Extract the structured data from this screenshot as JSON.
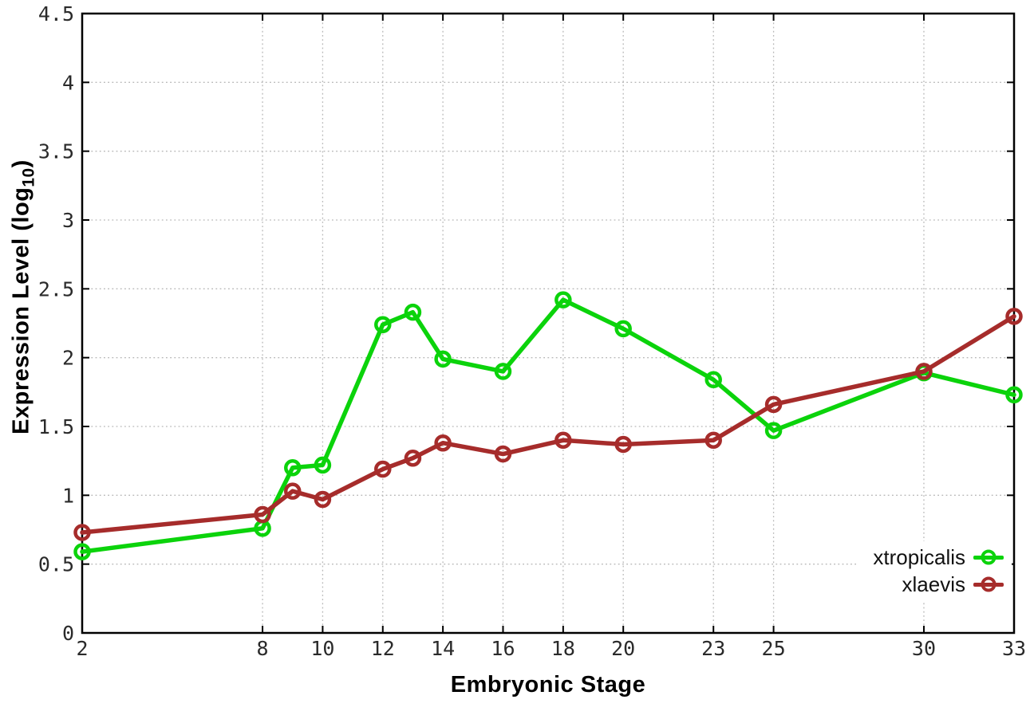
{
  "chart_data": {
    "type": "line",
    "title": "",
    "xlabel": "Embryonic Stage",
    "ylabel_prefix": "Expression Level (log",
    "ylabel_sub": "10",
    "ylabel_suffix": ")",
    "x": [
      2,
      8,
      9,
      10,
      12,
      13,
      14,
      16,
      18,
      20,
      23,
      25,
      30,
      33
    ],
    "series": [
      {
        "name": "xtropicalis",
        "color": "#0bd30b",
        "values": [
          0.59,
          0.76,
          1.2,
          1.22,
          2.24,
          2.33,
          1.99,
          1.9,
          2.42,
          2.21,
          1.84,
          1.47,
          1.89,
          1.73
        ]
      },
      {
        "name": "xlaevis",
        "color": "#a62c2b",
        "values": [
          0.73,
          0.86,
          1.03,
          0.97,
          1.19,
          1.27,
          1.38,
          1.3,
          1.4,
          1.37,
          1.4,
          1.66,
          1.9,
          2.3
        ]
      }
    ],
    "xlim": [
      2,
      33
    ],
    "ylim": [
      0,
      4.5
    ],
    "xticks": [
      2,
      8,
      10,
      12,
      14,
      16,
      18,
      20,
      23,
      25,
      30,
      33
    ],
    "xtick_labels": [
      "2",
      "8",
      "10",
      "12",
      "14",
      "16",
      "18",
      "20",
      "23",
      "25",
      "30",
      "33"
    ],
    "yticks": [
      0,
      0.5,
      1,
      1.5,
      2,
      2.5,
      3,
      3.5,
      4,
      4.5
    ],
    "ytick_labels": [
      "0",
      "0.5",
      "1",
      "1.5",
      "2",
      "2.5",
      "3",
      "3.5",
      "4",
      "4.5"
    ],
    "grid": true,
    "grid_color": "#b8b8b8",
    "axis_color": "#000000",
    "tick_label_color": "#2a2a2a",
    "legend_position": "bottom-right",
    "marker": "open-circle"
  }
}
